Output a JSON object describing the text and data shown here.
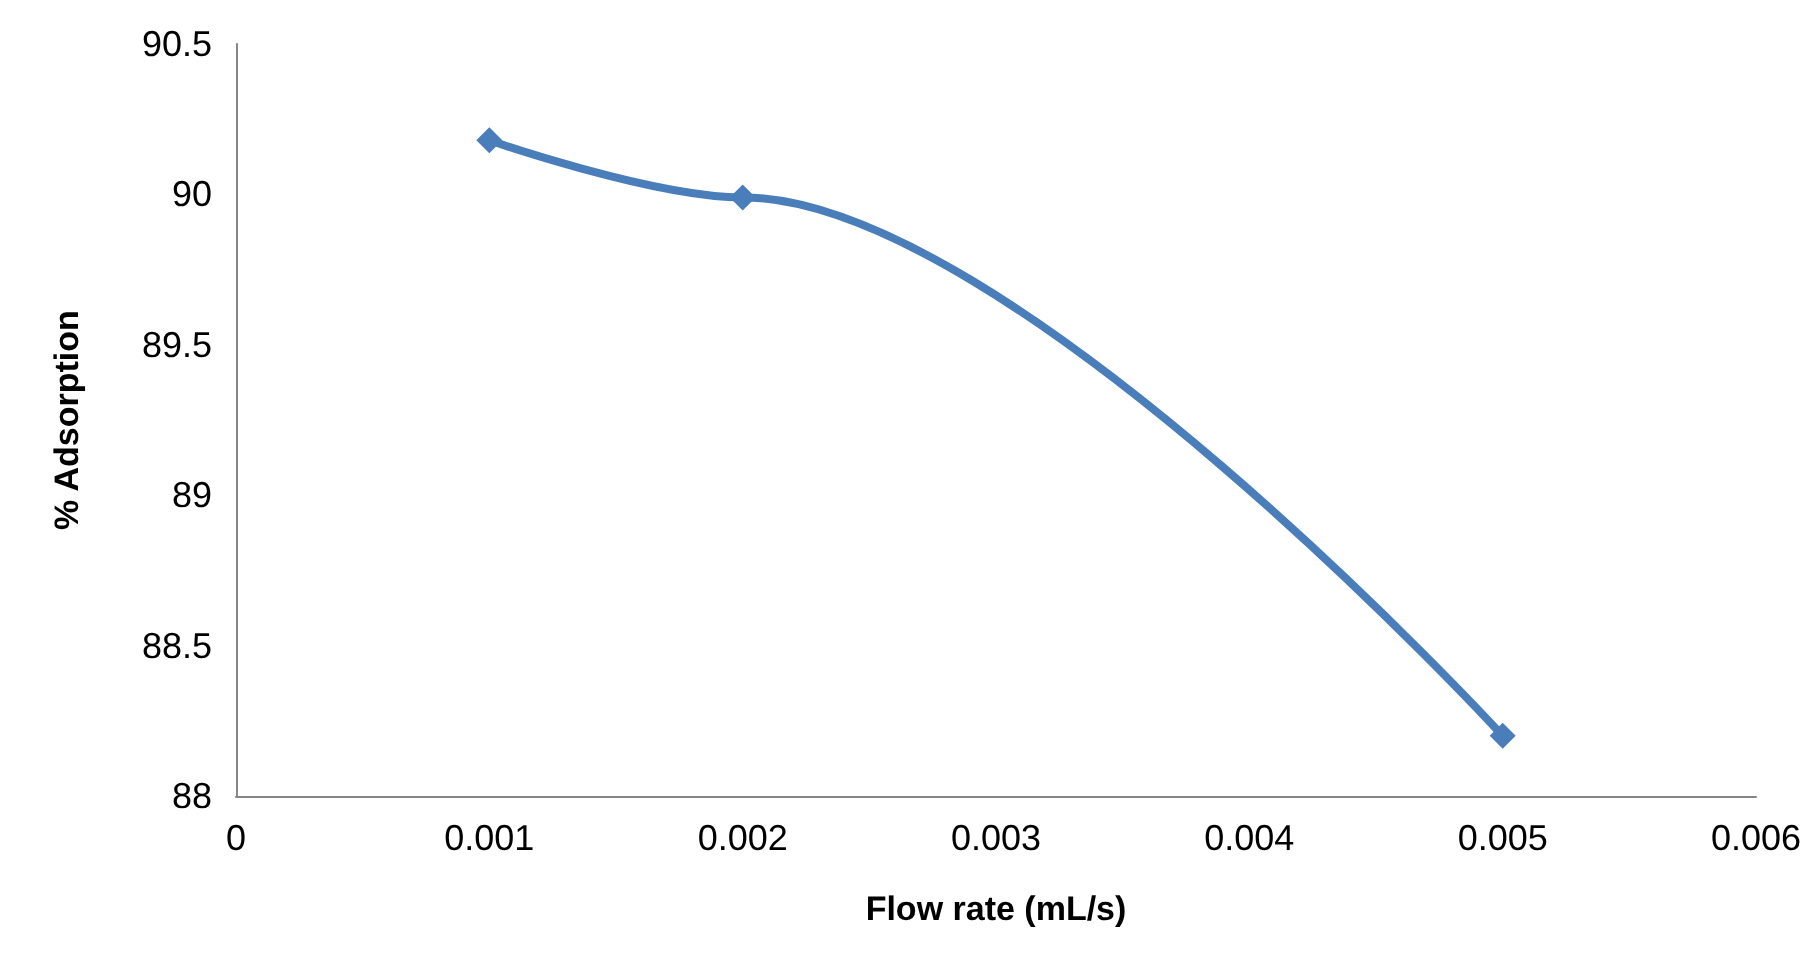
{
  "chart_data": {
    "type": "line",
    "xlabel": "Flow rate (mL/s)",
    "ylabel": "% Adsorption",
    "x": [
      0.001,
      0.002,
      0.005
    ],
    "series": [
      {
        "color": "#4a7ebb",
        "values": [
          90.18,
          89.99,
          88.2
        ]
      }
    ],
    "xlim": [
      0,
      0.006
    ],
    "xticks": [
      0,
      0.001,
      0.002,
      0.003,
      0.004,
      0.005,
      0.006
    ],
    "ylim": [
      88,
      90.5
    ],
    "yticks": [
      88,
      88.5,
      89,
      89.5,
      90,
      90.5
    ],
    "grid": false,
    "marker": "diamond",
    "line_style": "solid"
  }
}
